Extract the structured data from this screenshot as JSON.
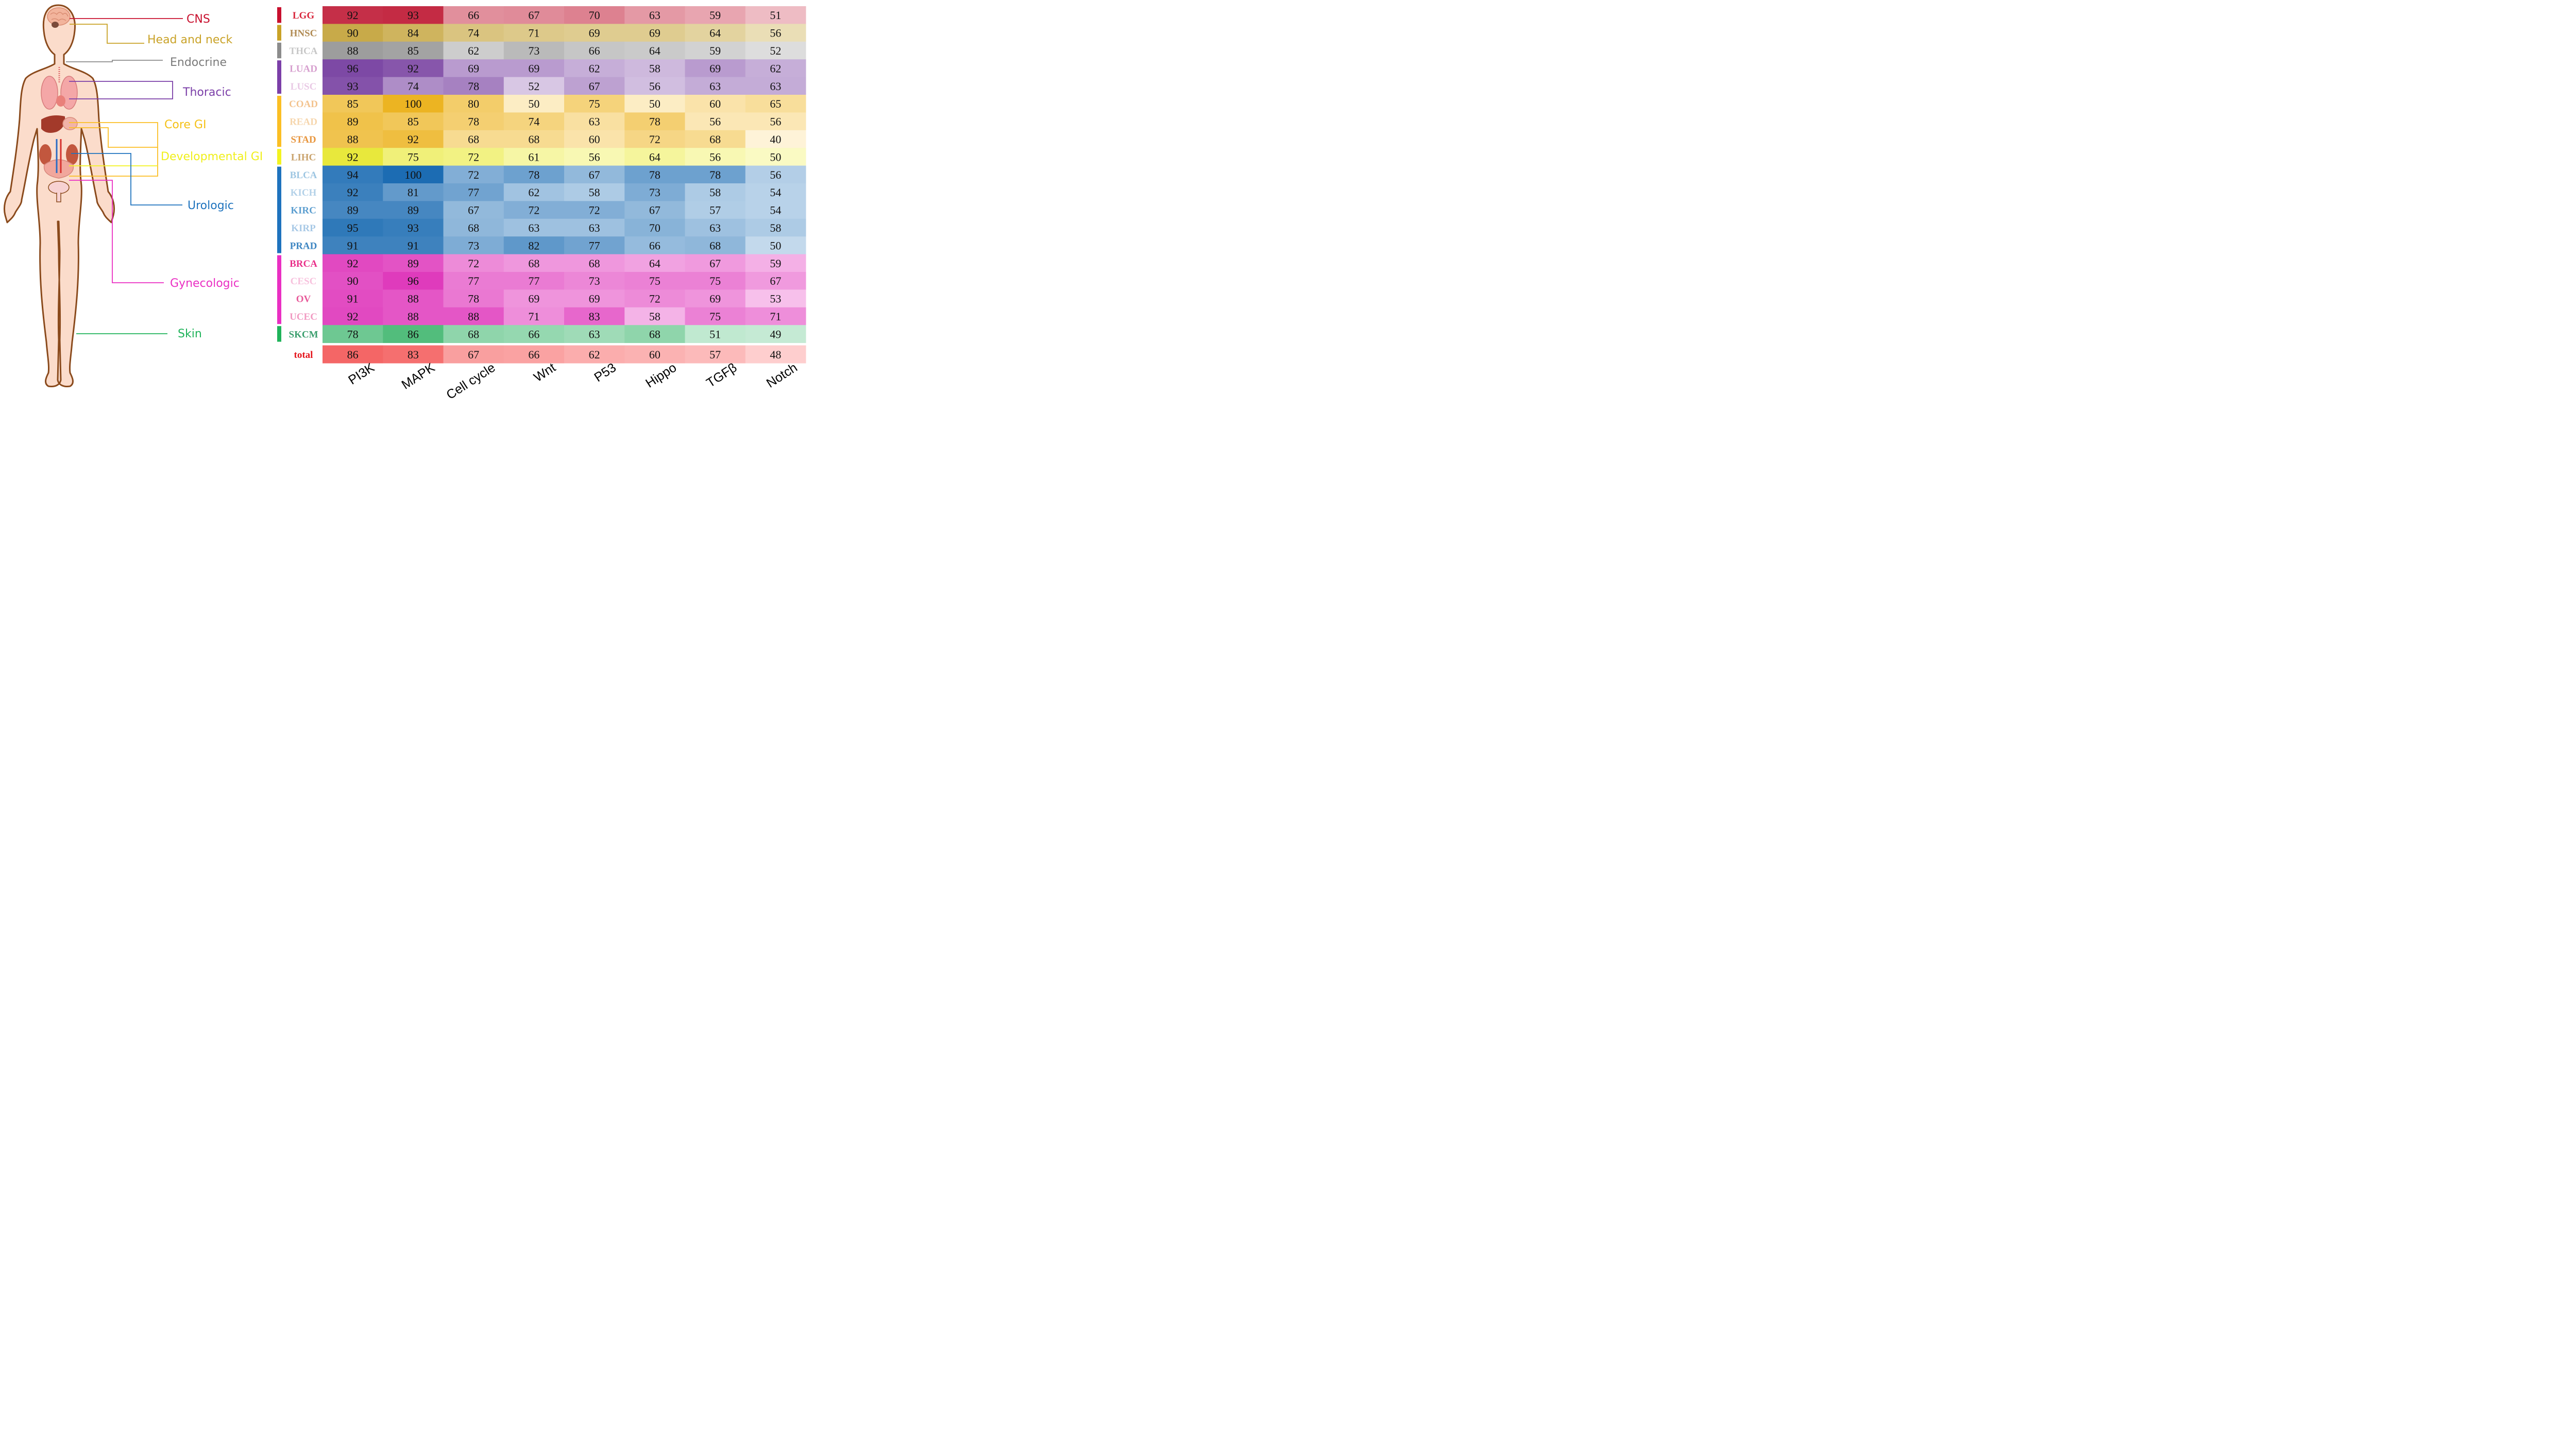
{
  "chart_data": {
    "type": "heatmap",
    "title": "",
    "columns": [
      "PI3K",
      "MAPK",
      "Cell cycle",
      "Wnt",
      "P53",
      "Hippo",
      "TGFβ",
      "Notch"
    ],
    "value_range": [
      40,
      100
    ],
    "groups": [
      {
        "name": "CNS",
        "color": "#c8102e",
        "label_color": "#c8102e"
      },
      {
        "name": "Head and neck",
        "color": "#c9a227",
        "label_color": "#c9a227"
      },
      {
        "name": "Endocrine",
        "color": "#8c8c8c",
        "label_color": "#7a7a7a"
      },
      {
        "name": "Thoracic",
        "color": "#7b3fa8",
        "label_color": "#7b3fa8"
      },
      {
        "name": "Core GI",
        "color": "#fbbf24",
        "label_color": "#f5c116"
      },
      {
        "name": "Developmental GI",
        "color": "#f3f320",
        "label_color": "#f0ef1a"
      },
      {
        "name": "Urologic",
        "color": "#1e73be",
        "label_color": "#1e73be"
      },
      {
        "name": "Gynecologic",
        "color": "#ea2fc3",
        "label_color": "#ea2fc3"
      },
      {
        "name": "Skin",
        "color": "#1fb35a",
        "label_color": "#1fb35a"
      }
    ],
    "rows": [
      {
        "name": "LGG",
        "group": "CNS",
        "label_color": "#d8243a",
        "values": [
          92,
          93,
          66,
          67,
          70,
          63,
          59,
          51
        ]
      },
      {
        "name": "HNSC",
        "group": "Head and neck",
        "label_color": "#b08a52",
        "values": [
          90,
          84,
          74,
          71,
          69,
          69,
          64,
          56
        ]
      },
      {
        "name": "THCA",
        "group": "Endocrine",
        "label_color": "#c7c7c7",
        "values": [
          88,
          85,
          62,
          73,
          66,
          64,
          59,
          52
        ]
      },
      {
        "name": "LUAD",
        "group": "Thoracic",
        "label_color": "#d7a0cf",
        "values": [
          96,
          92,
          69,
          69,
          62,
          58,
          69,
          62
        ]
      },
      {
        "name": "LUSC",
        "group": "Thoracic",
        "label_color": "#e9c9e5",
        "values": [
          93,
          74,
          78,
          52,
          67,
          56,
          63,
          63
        ]
      },
      {
        "name": "COAD",
        "group": "Core GI",
        "label_color": "#f3c38e",
        "values": [
          85,
          100,
          80,
          50,
          75,
          50,
          60,
          65
        ]
      },
      {
        "name": "READ",
        "group": "Core GI",
        "label_color": "#f6d6ad",
        "values": [
          89,
          85,
          78,
          74,
          63,
          78,
          56,
          56
        ]
      },
      {
        "name": "STAD",
        "group": "Core GI",
        "label_color": "#e8963e",
        "values": [
          88,
          92,
          68,
          68,
          60,
          72,
          68,
          40
        ]
      },
      {
        "name": "LIHC",
        "group": "Developmental GI",
        "label_color": "#c9a26b",
        "values": [
          92,
          75,
          72,
          61,
          56,
          64,
          56,
          50
        ]
      },
      {
        "name": "BLCA",
        "group": "Urologic",
        "label_color": "#9ec6e2",
        "values": [
          94,
          100,
          72,
          78,
          67,
          78,
          78,
          56
        ]
      },
      {
        "name": "KICH",
        "group": "Urologic",
        "label_color": "#b3d1e8",
        "values": [
          92,
          81,
          77,
          62,
          58,
          73,
          58,
          54
        ]
      },
      {
        "name": "KIRC",
        "group": "Urologic",
        "label_color": "#5d9fd0",
        "values": [
          89,
          89,
          67,
          72,
          72,
          67,
          57,
          54
        ]
      },
      {
        "name": "KIRP",
        "group": "Urologic",
        "label_color": "#a8c9e6",
        "values": [
          95,
          93,
          68,
          63,
          63,
          70,
          63,
          58
        ]
      },
      {
        "name": "PRAD",
        "group": "Urologic",
        "label_color": "#3e86c2",
        "values": [
          91,
          91,
          73,
          82,
          77,
          66,
          68,
          50
        ]
      },
      {
        "name": "BRCA",
        "group": "Gynecologic",
        "label_color": "#e9308a",
        "values": [
          92,
          89,
          72,
          68,
          68,
          64,
          67,
          59
        ]
      },
      {
        "name": "CESC",
        "group": "Gynecologic",
        "label_color": "#f7c1dd",
        "values": [
          90,
          96,
          77,
          77,
          73,
          75,
          75,
          67
        ]
      },
      {
        "name": "OV",
        "group": "Gynecologic",
        "label_color": "#e85a9a",
        "values": [
          91,
          88,
          78,
          69,
          69,
          72,
          69,
          53
        ]
      },
      {
        "name": "UCEC",
        "group": "Gynecologic",
        "label_color": "#f19ac2",
        "values": [
          92,
          88,
          88,
          71,
          83,
          58,
          75,
          71
        ]
      },
      {
        "name": "SKCM",
        "group": "Skin",
        "label_color": "#3a9e6d",
        "values": [
          78,
          86,
          68,
          66,
          63,
          68,
          51,
          49
        ]
      },
      {
        "name": "total",
        "group": "",
        "label_color": "#e4141b",
        "base_color": "#ff3b3b",
        "values": [
          86,
          83,
          67,
          66,
          62,
          60,
          57,
          48
        ]
      }
    ]
  }
}
